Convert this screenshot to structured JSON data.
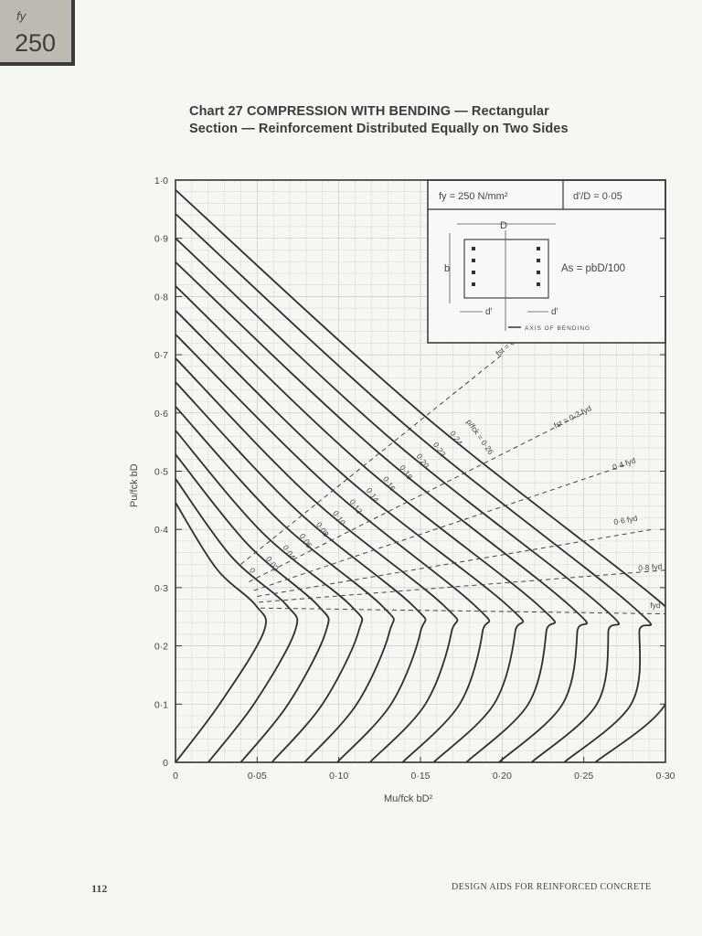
{
  "tab": {
    "label": "fy",
    "value": "250"
  },
  "title": {
    "line1": "Chart 27  COMPRESSION WITH BENDING — Rectangular",
    "line2": "Section — Reinforcement Distributed Equally on Two Sides"
  },
  "inset": {
    "fy": "fy = 250 N/mm²",
    "dD": "d'/D = 0·05",
    "as": "As = pbD/100",
    "D": "D",
    "b": "b",
    "d1": "d'",
    "d2": "d'",
    "axis": "AXIS OF BENDING"
  },
  "footer": {
    "page": "112",
    "text": "DESIGN AIDS FOR REINFORCED CONCRETE"
  },
  "chart_data": {
    "type": "line",
    "xlabel": "Mu/fck bD²",
    "ylabel": "Pu/fck bD",
    "xlim": [
      0,
      0.3
    ],
    "ylim": [
      0,
      1.0
    ],
    "grid": true,
    "xticks": [
      {
        "v": 0,
        "t": "0"
      },
      {
        "v": 0.05,
        "t": "0·05"
      },
      {
        "v": 0.1,
        "t": "0·10"
      },
      {
        "v": 0.15,
        "t": "0·15"
      },
      {
        "v": 0.2,
        "t": "0·20"
      },
      {
        "v": 0.25,
        "t": "0·25"
      },
      {
        "v": 0.3,
        "t": "0·30"
      }
    ],
    "yticks": [
      {
        "v": 0,
        "t": "0"
      },
      {
        "v": 0.1,
        "t": "0·1"
      },
      {
        "v": 0.2,
        "t": "0·2"
      },
      {
        "v": 0.3,
        "t": "0·3"
      },
      {
        "v": 0.4,
        "t": "0·4"
      },
      {
        "v": 0.5,
        "t": "0·5"
      },
      {
        "v": 0.6,
        "t": "0·6"
      },
      {
        "v": 0.7,
        "t": "0·7"
      },
      {
        "v": 0.8,
        "t": "0·8"
      },
      {
        "v": 0.9,
        "t": "0·9"
      },
      {
        "v": 1.0,
        "t": "1·0"
      }
    ],
    "curves": [
      {
        "label": "0",
        "points": [
          [
            0,
            0
          ],
          [
            0.027,
            0.1
          ],
          [
            0.054,
            0.224
          ],
          [
            0.049,
            0.27
          ],
          [
            0.025,
            0.333
          ],
          [
            0,
            0.446
          ]
        ]
      },
      {
        "label": "0·02",
        "points": [
          [
            0.02,
            0
          ],
          [
            0.048,
            0.1
          ],
          [
            0.073,
            0.224
          ],
          [
            0.068,
            0.27
          ],
          [
            0.034,
            0.354
          ],
          [
            0,
            0.487
          ]
        ]
      },
      {
        "label": "0·04",
        "points": [
          [
            0.04,
            0
          ],
          [
            0.069,
            0.1
          ],
          [
            0.092,
            0.224
          ],
          [
            0.087,
            0.27
          ],
          [
            0.044,
            0.375
          ],
          [
            0,
            0.529
          ]
        ]
      },
      {
        "label": "0·06",
        "points": [
          [
            0.059,
            0
          ],
          [
            0.09,
            0.1
          ],
          [
            0.112,
            0.224
          ],
          [
            0.107,
            0.27
          ],
          [
            0.053,
            0.395
          ],
          [
            0,
            0.57
          ]
        ]
      },
      {
        "label": "0·08",
        "points": [
          [
            0.079,
            0
          ],
          [
            0.111,
            0.1
          ],
          [
            0.131,
            0.224
          ],
          [
            0.126,
            0.27
          ],
          [
            0.063,
            0.416
          ],
          [
            0,
            0.611
          ]
        ]
      },
      {
        "label": "0·10",
        "points": [
          [
            0.099,
            0
          ],
          [
            0.132,
            0.1
          ],
          [
            0.15,
            0.224
          ],
          [
            0.145,
            0.27
          ],
          [
            0.073,
            0.436
          ],
          [
            0,
            0.653
          ]
        ]
      },
      {
        "label": "0·12",
        "points": [
          [
            0.119,
            0
          ],
          [
            0.153,
            0.1
          ],
          [
            0.169,
            0.224
          ],
          [
            0.164,
            0.27
          ],
          [
            0.082,
            0.457
          ],
          [
            0,
            0.694
          ]
        ]
      },
      {
        "label": "0·14",
        "points": [
          [
            0.139,
            0
          ],
          [
            0.174,
            0.1
          ],
          [
            0.188,
            0.224
          ],
          [
            0.183,
            0.27
          ],
          [
            0.092,
            0.478
          ],
          [
            0,
            0.735
          ]
        ]
      },
      {
        "label": "0·16",
        "points": [
          [
            0.158,
            0
          ],
          [
            0.195,
            0.1
          ],
          [
            0.208,
            0.224
          ],
          [
            0.203,
            0.27
          ],
          [
            0.101,
            0.498
          ],
          [
            0,
            0.776
          ]
        ]
      },
      {
        "label": "0·18",
        "points": [
          [
            0.178,
            0
          ],
          [
            0.216,
            0.1
          ],
          [
            0.227,
            0.224
          ],
          [
            0.222,
            0.27
          ],
          [
            0.111,
            0.519
          ],
          [
            0,
            0.818
          ]
        ]
      },
      {
        "label": "0·20",
        "points": [
          [
            0.198,
            0
          ],
          [
            0.237,
            0.1
          ],
          [
            0.246,
            0.224
          ],
          [
            0.241,
            0.27
          ],
          [
            0.121,
            0.54
          ],
          [
            0,
            0.859
          ]
        ]
      },
      {
        "label": "0·22",
        "points": [
          [
            0.218,
            0
          ],
          [
            0.258,
            0.1
          ],
          [
            0.265,
            0.224
          ],
          [
            0.26,
            0.27
          ],
          [
            0.13,
            0.56
          ],
          [
            0,
            0.9
          ]
        ]
      },
      {
        "label": "0·24",
        "points": [
          [
            0.238,
            0
          ],
          [
            0.279,
            0.1
          ],
          [
            0.284,
            0.224
          ],
          [
            0.279,
            0.27
          ],
          [
            0.14,
            0.581
          ],
          [
            0,
            0.942
          ]
        ]
      },
      {
        "label": "p/fck = 0·26",
        "points": [
          [
            0.257,
            0
          ],
          [
            0.3,
            0.1
          ],
          [
            0.304,
            0.224
          ],
          [
            0.299,
            0.27
          ],
          [
            0.15,
            0.601
          ],
          [
            0,
            0.983
          ]
        ]
      }
    ],
    "stress_lines": [
      {
        "label": "fst = 0",
        "points": [
          [
            0.04,
            0.34
          ],
          [
            0.2,
            0.7
          ]
        ]
      },
      {
        "label": "fst = 0·2 fyd",
        "points": [
          [
            0.045,
            0.31
          ],
          [
            0.25,
            0.6
          ]
        ]
      },
      {
        "label": "0·4 fyd",
        "points": [
          [
            0.048,
            0.295
          ],
          [
            0.275,
            0.51
          ]
        ]
      },
      {
        "label": "0·6 fyd",
        "points": [
          [
            0.05,
            0.285
          ],
          [
            0.292,
            0.4
          ]
        ]
      },
      {
        "label": "0·8 fyd",
        "points": [
          [
            0.051,
            0.275
          ],
          [
            0.3,
            0.33
          ]
        ]
      },
      {
        "label": "fyd",
        "points": [
          [
            0.052,
            0.265
          ],
          [
            0.3,
            0.255
          ]
        ]
      }
    ]
  }
}
